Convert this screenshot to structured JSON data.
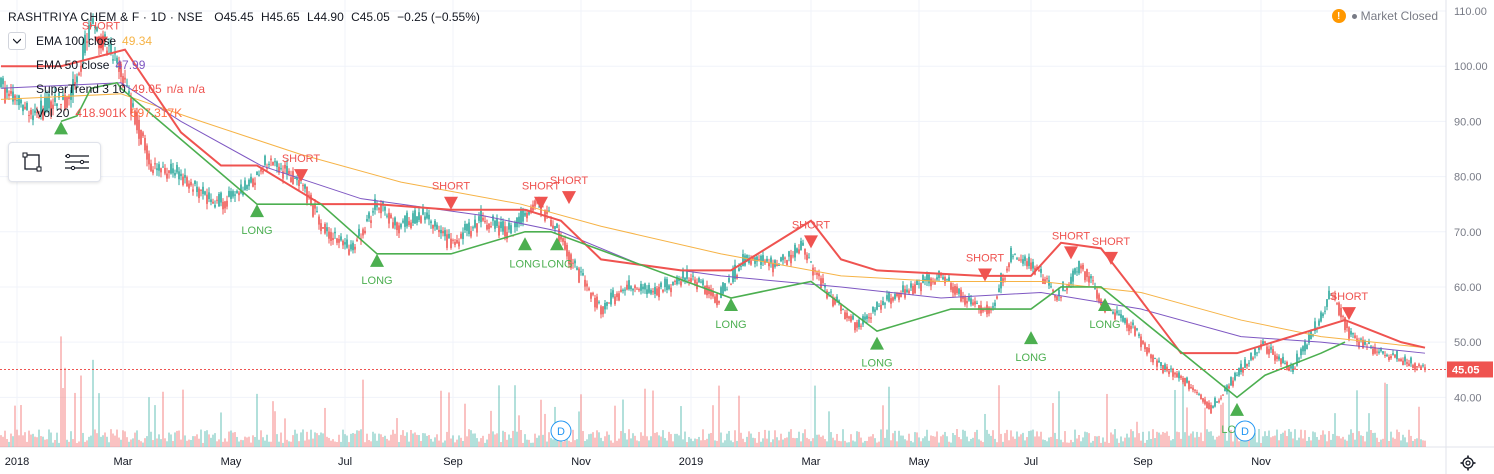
{
  "header": {
    "symbol": "RASHTRIYA CHEM & F · 1D · NSE",
    "open": "O45.45",
    "high": "H45.65",
    "low": "L44.90",
    "close": "C45.05",
    "change": "−0.25 (−0.55%)",
    "market_status": "Market Closed"
  },
  "legend": {
    "ema100": {
      "name": "EMA 100 close",
      "value": "49.34",
      "color": "#f6b346"
    },
    "ema50": {
      "name": "EMA 50 close",
      "value": "47.99",
      "color": "#7e57c2"
    },
    "supertrend": {
      "name": "SuperTrend 3 10",
      "value": "49.05",
      "na1": "n/a",
      "na2": "n/a",
      "color": "#ef5350"
    },
    "vol": {
      "name": "Vol 20",
      "value": "418.901K",
      "value2": "597.317K",
      "color1": "#ef5350",
      "color2": "#ff7043"
    }
  },
  "colors": {
    "up": "#26a69a",
    "down": "#ef5350",
    "long": "#4caf50",
    "short": "#ef5350",
    "grid": "#f0f3fa",
    "axis_text": "#787b86",
    "price_line": "#ef5350"
  },
  "icons": {
    "rectangle_tool": "rectangle-tool-icon",
    "menu_tool": "menu-lines-icon",
    "settings": "gear-icon",
    "dividend": "dividend-icon"
  },
  "chart_data": {
    "type": "candlestick",
    "price_axis": {
      "ylim": [
        31,
        112
      ],
      "ticks": [
        "40.00",
        "50.00",
        "60.00",
        "70.00",
        "80.00",
        "90.00",
        "100.00",
        "110.00"
      ]
    },
    "time_axis": [
      "2018",
      "Mar",
      "May",
      "Jul",
      "Sep",
      "Nov",
      "2019",
      "Mar",
      "May",
      "Jul",
      "Sep",
      "Nov"
    ],
    "last_price": "45.05",
    "price_anchors": [
      {
        "d": 0,
        "p": 96
      },
      {
        "d": 15,
        "p": 91
      },
      {
        "d": 35,
        "p": 95
      },
      {
        "d": 45,
        "p": 108
      },
      {
        "d": 60,
        "p": 99
      },
      {
        "d": 75,
        "p": 82
      },
      {
        "d": 90,
        "p": 80
      },
      {
        "d": 105,
        "p": 75
      },
      {
        "d": 120,
        "p": 77
      },
      {
        "d": 135,
        "p": 83
      },
      {
        "d": 150,
        "p": 79
      },
      {
        "d": 162,
        "p": 70
      },
      {
        "d": 175,
        "p": 67
      },
      {
        "d": 188,
        "p": 75
      },
      {
        "d": 198,
        "p": 71
      },
      {
        "d": 212,
        "p": 73
      },
      {
        "d": 225,
        "p": 68
      },
      {
        "d": 240,
        "p": 72
      },
      {
        "d": 255,
        "p": 70
      },
      {
        "d": 268,
        "p": 76
      },
      {
        "d": 278,
        "p": 70
      },
      {
        "d": 286,
        "p": 64
      },
      {
        "d": 300,
        "p": 56
      },
      {
        "d": 312,
        "p": 60
      },
      {
        "d": 325,
        "p": 59
      },
      {
        "d": 345,
        "p": 62
      },
      {
        "d": 358,
        "p": 58
      },
      {
        "d": 372,
        "p": 65
      },
      {
        "d": 388,
        "p": 64
      },
      {
        "d": 400,
        "p": 67
      },
      {
        "d": 415,
        "p": 58
      },
      {
        "d": 428,
        "p": 53
      },
      {
        "d": 440,
        "p": 57
      },
      {
        "d": 455,
        "p": 60
      },
      {
        "d": 470,
        "p": 62
      },
      {
        "d": 485,
        "p": 57
      },
      {
        "d": 495,
        "p": 56
      },
      {
        "d": 505,
        "p": 66
      },
      {
        "d": 518,
        "p": 63
      },
      {
        "d": 528,
        "p": 58
      },
      {
        "d": 540,
        "p": 64
      },
      {
        "d": 552,
        "p": 56
      },
      {
        "d": 565,
        "p": 53
      },
      {
        "d": 578,
        "p": 46
      },
      {
        "d": 592,
        "p": 43
      },
      {
        "d": 605,
        "p": 38
      },
      {
        "d": 618,
        "p": 44
      },
      {
        "d": 630,
        "p": 50
      },
      {
        "d": 645,
        "p": 45
      },
      {
        "d": 655,
        "p": 51
      },
      {
        "d": 665,
        "p": 59
      },
      {
        "d": 675,
        "p": 51
      },
      {
        "d": 690,
        "p": 48
      },
      {
        "d": 700,
        "p": 47
      },
      {
        "d": 712,
        "p": 45
      }
    ],
    "ema50": [
      {
        "d": 0,
        "p": 96
      },
      {
        "d": 60,
        "p": 97
      },
      {
        "d": 90,
        "p": 90
      },
      {
        "d": 130,
        "p": 82
      },
      {
        "d": 180,
        "p": 76
      },
      {
        "d": 240,
        "p": 73
      },
      {
        "d": 280,
        "p": 70
      },
      {
        "d": 320,
        "p": 64
      },
      {
        "d": 360,
        "p": 62
      },
      {
        "d": 420,
        "p": 60
      },
      {
        "d": 470,
        "p": 58
      },
      {
        "d": 520,
        "p": 59
      },
      {
        "d": 570,
        "p": 56
      },
      {
        "d": 620,
        "p": 51
      },
      {
        "d": 660,
        "p": 50
      },
      {
        "d": 712,
        "p": 48
      }
    ],
    "ema100": [
      {
        "d": 0,
        "p": 94
      },
      {
        "d": 60,
        "p": 95
      },
      {
        "d": 100,
        "p": 90
      },
      {
        "d": 150,
        "p": 84
      },
      {
        "d": 200,
        "p": 79
      },
      {
        "d": 260,
        "p": 75
      },
      {
        "d": 300,
        "p": 71
      },
      {
        "d": 360,
        "p": 66
      },
      {
        "d": 420,
        "p": 62
      },
      {
        "d": 470,
        "p": 61
      },
      {
        "d": 520,
        "p": 61
      },
      {
        "d": 570,
        "p": 59
      },
      {
        "d": 620,
        "p": 54
      },
      {
        "d": 660,
        "p": 51
      },
      {
        "d": 712,
        "p": 49
      }
    ],
    "supertrend_long": [
      {
        "d": 30,
        "p": 90
      },
      {
        "d": 38,
        "p": 91
      },
      {
        "d": 45,
        "p": 96
      },
      {
        "d": 58,
        "p": 97
      },
      {
        "d": 60,
        "p": 96
      },
      {
        "d": 128,
        "p": 75
      },
      {
        "d": 160,
        "p": 75
      },
      {
        "d": 188,
        "p": 66
      },
      {
        "d": 225,
        "p": 66
      },
      {
        "d": 262,
        "p": 70
      },
      {
        "d": 275,
        "p": 70
      },
      {
        "d": 365,
        "p": 58
      },
      {
        "d": 405,
        "p": 61
      },
      {
        "d": 438,
        "p": 52
      },
      {
        "d": 475,
        "p": 56
      },
      {
        "d": 515,
        "p": 56
      },
      {
        "d": 515,
        "p": 56
      },
      {
        "d": 530,
        "p": 60
      },
      {
        "d": 550,
        "p": 60
      },
      {
        "d": 618,
        "p": 40
      },
      {
        "d": 632,
        "p": 44
      },
      {
        "d": 660,
        "p": 48
      },
      {
        "d": 672,
        "p": 50
      }
    ],
    "supertrend_short": [
      {
        "d": 0,
        "p": 100
      },
      {
        "d": 30,
        "p": 100
      },
      {
        "d": 62,
        "p": 103
      },
      {
        "d": 90,
        "p": 88
      },
      {
        "d": 110,
        "p": 82
      },
      {
        "d": 128,
        "p": 82
      },
      {
        "d": 160,
        "p": 75
      },
      {
        "d": 188,
        "p": 75
      },
      {
        "d": 225,
        "p": 74
      },
      {
        "d": 262,
        "p": 74
      },
      {
        "d": 280,
        "p": 72
      },
      {
        "d": 300,
        "p": 65
      },
      {
        "d": 340,
        "p": 63
      },
      {
        "d": 365,
        "p": 63
      },
      {
        "d": 405,
        "p": 72
      },
      {
        "d": 420,
        "p": 65
      },
      {
        "d": 438,
        "p": 63
      },
      {
        "d": 490,
        "p": 62
      },
      {
        "d": 515,
        "p": 62
      },
      {
        "d": 530,
        "p": 68
      },
      {
        "d": 550,
        "p": 67
      },
      {
        "d": 565,
        "p": 60
      },
      {
        "d": 590,
        "p": 48
      },
      {
        "d": 618,
        "p": 48
      },
      {
        "d": 672,
        "p": 54
      },
      {
        "d": 700,
        "p": 50
      },
      {
        "d": 712,
        "p": 49
      }
    ],
    "signals": [
      {
        "type": "LONG",
        "d": 30,
        "p": 90
      },
      {
        "type": "SHORT",
        "d": 50,
        "p": 103
      },
      {
        "type": "LONG",
        "d": 128,
        "p": 75
      },
      {
        "type": "SHORT",
        "d": 150,
        "p": 79
      },
      {
        "type": "LONG",
        "d": 188,
        "p": 66
      },
      {
        "type": "SHORT",
        "d": 225,
        "p": 74
      },
      {
        "type": "LONG",
        "d": 262,
        "p": 69
      },
      {
        "type": "SHORT",
        "d": 270,
        "p": 74
      },
      {
        "type": "LONG",
        "d": 278,
        "p": 69
      },
      {
        "type": "SHORT",
        "d": 284,
        "p": 75
      },
      {
        "type": "LONG",
        "d": 365,
        "p": 58
      },
      {
        "type": "SHORT",
        "d": 405,
        "p": 67
      },
      {
        "type": "LONG",
        "d": 438,
        "p": 51
      },
      {
        "type": "SHORT",
        "d": 492,
        "p": 61
      },
      {
        "type": "LONG",
        "d": 515,
        "p": 52
      },
      {
        "type": "SHORT",
        "d": 535,
        "p": 65
      },
      {
        "type": "SHORT",
        "d": 555,
        "p": 64
      },
      {
        "type": "LONG",
        "d": 552,
        "p": 58
      },
      {
        "type": "LONG",
        "d": 618,
        "p": 39
      },
      {
        "type": "SHORT",
        "d": 674,
        "p": 54
      }
    ],
    "dividends": [
      {
        "d": 280,
        "label": "D"
      },
      {
        "d": 622,
        "label": "D"
      }
    ]
  }
}
